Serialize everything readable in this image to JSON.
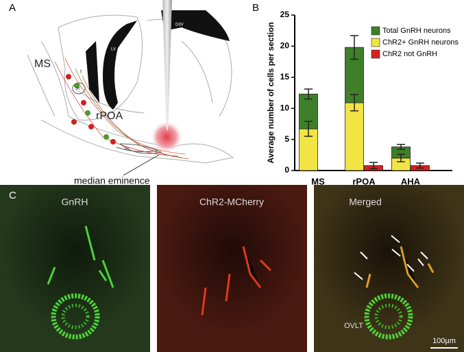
{
  "panel_labels": [
    "A",
    "B",
    "C"
  ],
  "diagram": {
    "labels": [
      "MS",
      "rPOA",
      "median eminence"
    ],
    "small_labels": [
      "D3V",
      "LV",
      "f",
      "ac",
      "ox"
    ]
  },
  "images": [
    {
      "title": "GnRH"
    },
    {
      "title": "ChR2-MCherry"
    },
    {
      "title": "Merged",
      "annotation": "OVLT",
      "scale_bar": "100µm"
    }
  ],
  "chart_data": {
    "type": "bar",
    "stacked": true,
    "ylabel": "Average number of cells per section",
    "categories": [
      "MS",
      "rPOA",
      "AHA"
    ],
    "series": [
      {
        "name": "Total GnRH neurons",
        "color": "#3f7f2a",
        "values": [
          5.6,
          8.9,
          1.8
        ],
        "errors": [
          0.8,
          1.9,
          0.4
        ]
      },
      {
        "name": "ChR2+ GnRH neurons",
        "color": "#f2e443",
        "values": [
          6.7,
          10.9,
          2.0
        ],
        "errors": [
          1.2,
          1.3,
          0.6
        ]
      },
      {
        "name": "ChR2 not GnRH",
        "color": "#d92020",
        "values": [
          null,
          0.8,
          0.8
        ],
        "errors": [
          null,
          0.5,
          0.4
        ]
      }
    ],
    "ylim": [
      0,
      25
    ],
    "yticks": [
      0,
      5,
      10,
      15,
      20,
      25
    ]
  }
}
